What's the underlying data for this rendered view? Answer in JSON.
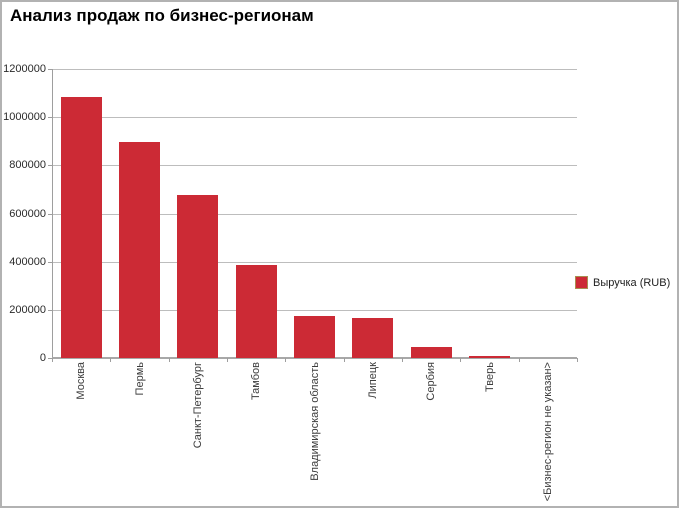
{
  "title": "Анализ продаж по бизнес-регионам",
  "legend": {
    "items": [
      {
        "label": "Выручка (RUB)",
        "color": "#cc2a35"
      }
    ]
  },
  "colors": {
    "bar": "#cc2a35",
    "gridline": "#bdbdbd",
    "axis": "#9e9e9e",
    "outer_border": "#b2b2b2",
    "legend_swatch_border": "#a88f50",
    "background": "#ffffff"
  },
  "chart_data": {
    "type": "bar",
    "title": "Анализ продаж по бизнес-регионам",
    "categories": [
      "Москва",
      "Пермь",
      "Санкт-Петербург",
      "Тамбов",
      "Владимирская область",
      "Липецк",
      "Сербия",
      "Тверь",
      "<Бизнес-регион не указан>"
    ],
    "series": [
      {
        "name": "Выручка (RUB)",
        "values": [
          1085000,
          895000,
          675000,
          385000,
          176000,
          167000,
          45000,
          8000,
          1000
        ]
      }
    ],
    "xlabel": "",
    "ylabel": "",
    "ylim": [
      0,
      1200000
    ],
    "y_ticks": [
      0,
      200000,
      400000,
      600000,
      800000,
      1000000,
      1200000
    ],
    "grid": true,
    "legend_position": "right",
    "bar_color": "#cc2a35",
    "x_label_rotation_deg": -90
  }
}
